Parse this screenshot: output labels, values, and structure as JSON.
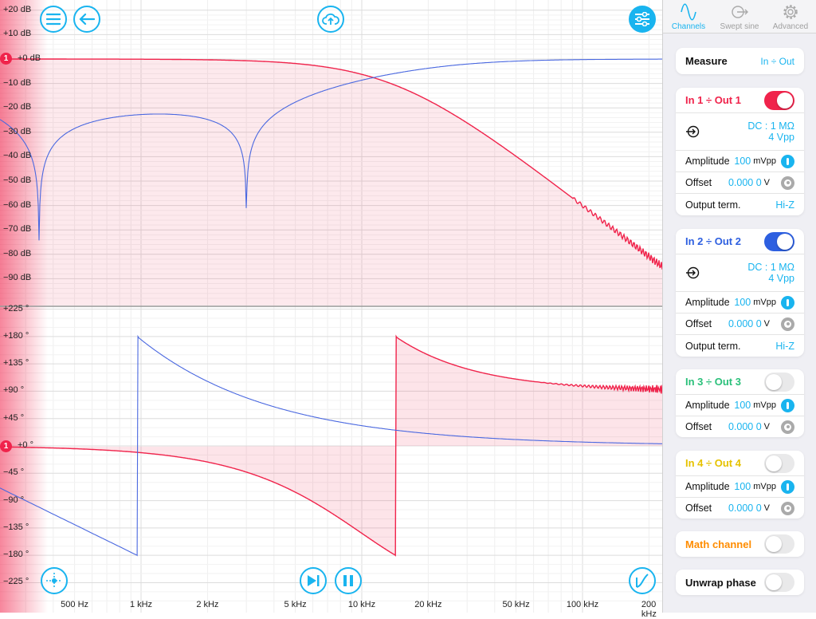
{
  "colors": {
    "accent": "#19b4ef",
    "ch1": "#f0234b",
    "ch2": "#2d5fe0",
    "ch3": "#2ac07a",
    "ch4": "#e6c200",
    "math": "#ff8c00"
  },
  "mag_axis": {
    "labels": [
      "+20 dB",
      "+10 dB",
      "+0 dB",
      "−10 dB",
      "−20 dB",
      "−30 dB",
      "−40 dB",
      "−50 dB",
      "−60 dB",
      "−70 dB",
      "−80 dB",
      "−90 dB"
    ],
    "values": [
      20,
      10,
      0,
      -10,
      -20,
      -30,
      -40,
      -50,
      -60,
      -70,
      -80,
      -90
    ]
  },
  "phase_axis": {
    "labels": [
      "+225 °",
      "+180 °",
      "+135 °",
      "+90 °",
      "+45 °",
      "+0 °",
      "−45 °",
      "−90 °",
      "−135 °",
      "−180 °",
      "−225 °"
    ],
    "values": [
      225,
      180,
      135,
      90,
      45,
      0,
      -45,
      -90,
      -135,
      -180,
      -225
    ]
  },
  "freq_axis": {
    "labels": [
      "500 Hz",
      "1 kHz",
      "2 kHz",
      "5 kHz",
      "10 kHz",
      "20 kHz",
      "50 kHz",
      "100 kHz",
      "200 kHz"
    ],
    "values": [
      500,
      1000,
      2000,
      5000,
      10000,
      20000,
      50000,
      100000,
      200000
    ]
  },
  "markers": {
    "mag": "1",
    "phase": "1"
  },
  "tabs": [
    {
      "label": "Channels"
    },
    {
      "label": "Swept sine"
    },
    {
      "label": "Advanced"
    }
  ],
  "measure": {
    "label": "Measure",
    "value": "In ÷ Out"
  },
  "channels": [
    {
      "title": "In 1 ÷ Out 1",
      "enabled": true,
      "coupling": "DC : 1 MΩ",
      "range": "4 Vpp",
      "amplitude_label": "Amplitude",
      "amplitude": "100",
      "amplitude_unit": "mVpp",
      "offset_label": "Offset",
      "offset": "0.000 0",
      "offset_unit": "V",
      "term_label": "Output term.",
      "term": "Hi-Z"
    },
    {
      "title": "In 2 ÷ Out 2",
      "enabled": true,
      "coupling": "DC : 1 MΩ",
      "range": "4 Vpp",
      "amplitude_label": "Amplitude",
      "amplitude": "100",
      "amplitude_unit": "mVpp",
      "offset_label": "Offset",
      "offset": "0.000 0",
      "offset_unit": "V",
      "term_label": "Output term.",
      "term": "Hi-Z"
    },
    {
      "title": "In 3 ÷ Out 3",
      "enabled": false,
      "amplitude_label": "Amplitude",
      "amplitude": "100",
      "amplitude_unit": "mVpp",
      "offset_label": "Offset",
      "offset": "0.000 0",
      "offset_unit": "V"
    },
    {
      "title": "In 4 ÷ Out 4",
      "enabled": false,
      "amplitude_label": "Amplitude",
      "amplitude": "100",
      "amplitude_unit": "mVpp",
      "offset_label": "Offset",
      "offset": "0.000 0",
      "offset_unit": "V"
    }
  ],
  "math": {
    "label": "Math channel",
    "enabled": false
  },
  "unwrap": {
    "label": "Unwrap phase",
    "enabled": false
  }
}
